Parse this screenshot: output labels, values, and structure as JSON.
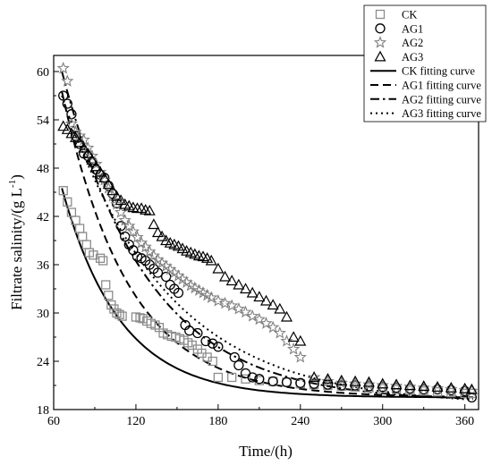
{
  "chart_data": {
    "type": "scatter",
    "xlabel": "Time/(h)",
    "ylabel_main": "Filtrate salinity/(g   L",
    "ylabel_exp": "-1",
    "ylabel_close": ")",
    "xlim": [
      60,
      370
    ],
    "ylim": [
      18,
      62
    ],
    "xticks": [
      60,
      120,
      180,
      240,
      300,
      360
    ],
    "yticks": [
      18,
      24,
      30,
      36,
      42,
      48,
      54,
      60
    ],
    "legend_position": "top-right",
    "colors": {
      "CK": "#8c8c8c",
      "AG1": "#000000",
      "AG2": "#808080",
      "AG3": "#000000",
      "fit": "#000000"
    },
    "legend": [
      {
        "label": "CK",
        "kind": "square"
      },
      {
        "label": "AG1",
        "kind": "circle"
      },
      {
        "label": "AG2",
        "kind": "star"
      },
      {
        "label": "AG3",
        "kind": "triangle"
      },
      {
        "label": "CK fitting curve",
        "kind": "solid"
      },
      {
        "label": "AG1 fitting curve",
        "kind": "dash"
      },
      {
        "label": "AG2 fitting curve",
        "kind": "dashdot"
      },
      {
        "label": "AG3 fitting curve",
        "kind": "dot"
      }
    ],
    "series": [
      {
        "name": "CK",
        "marker": "square",
        "x": [
          67,
          70,
          73,
          76,
          79,
          81,
          84,
          86,
          89,
          94,
          96,
          98,
          100,
          102,
          104,
          106,
          108,
          110,
          120,
          123,
          125,
          128,
          131,
          134,
          137,
          140,
          143,
          146,
          149,
          152,
          155,
          158,
          161,
          165,
          168,
          172,
          176,
          180,
          190,
          200,
          210,
          220,
          230,
          240,
          250,
          260,
          270,
          280,
          290,
          300,
          310,
          320,
          330,
          340,
          350,
          360,
          365
        ],
        "y": [
          45.2,
          43.8,
          42.5,
          41.5,
          40.5,
          39.5,
          38.5,
          37.5,
          37.2,
          36.8,
          36.5,
          33.5,
          32.2,
          31,
          30.5,
          30,
          29.8,
          29.6,
          29.5,
          29.4,
          29.3,
          29,
          28.7,
          28.5,
          28.2,
          27.5,
          27.3,
          27.1,
          27,
          26.8,
          26.6,
          26.3,
          26,
          25.5,
          25,
          24.5,
          24,
          22,
          22,
          21.8,
          21.6,
          21.5,
          21.4,
          21.2,
          21.1,
          21,
          20.9,
          20.8,
          20.7,
          20.6,
          20.5,
          20.4,
          20.3,
          20.2,
          20.1,
          20,
          20
        ]
      },
      {
        "name": "AG1",
        "marker": "circle",
        "x": [
          67,
          70,
          73,
          76,
          79,
          82,
          85,
          88,
          91,
          94,
          97,
          100,
          103,
          106,
          109,
          112,
          115,
          118,
          121,
          124,
          127,
          130,
          133,
          136,
          142,
          145,
          148,
          151,
          156,
          159,
          165,
          171,
          176,
          180,
          192,
          195,
          200,
          205,
          210,
          220,
          230,
          240,
          250,
          260,
          270,
          280,
          290,
          300,
          310,
          320,
          330,
          340,
          350,
          360,
          365
        ],
        "y": [
          57,
          56,
          54.7,
          52,
          51,
          49.8,
          49.5,
          48.8,
          47.8,
          47.2,
          46.8,
          45.8,
          44.8,
          43.6,
          40.8,
          39.5,
          38.5,
          37.8,
          37,
          36.8,
          36.5,
          36,
          35.5,
          35,
          34.5,
          33.5,
          33,
          32.5,
          28.5,
          27.8,
          27.5,
          26.5,
          26.2,
          25.8,
          24.5,
          23.5,
          22.5,
          22,
          21.8,
          21.5,
          21.4,
          21.3,
          21.2,
          21.1,
          21,
          21,
          20.9,
          20.8,
          20.7,
          20.6,
          20.5,
          20.5,
          20.4,
          20.3,
          19.5
        ]
      },
      {
        "name": "AG2",
        "marker": "star",
        "x": [
          67,
          70,
          73,
          76,
          79,
          82,
          85,
          88,
          91,
          94,
          97,
          100,
          103,
          106,
          109,
          112,
          115,
          118,
          121,
          124,
          127,
          130,
          133,
          136,
          139,
          142,
          145,
          148,
          151,
          154,
          157,
          160,
          163,
          166,
          169,
          172,
          175,
          180,
          185,
          190,
          195,
          200,
          205,
          210,
          215,
          220,
          225,
          230,
          235,
          240,
          250,
          260,
          270,
          280,
          290,
          300,
          310,
          320,
          330,
          340,
          350,
          360,
          365
        ],
        "y": [
          60.4,
          58.8,
          53.5,
          52.5,
          52,
          51.5,
          50.5,
          49.5,
          48.5,
          47.5,
          46.5,
          45.5,
          44.5,
          43.5,
          42.5,
          41.5,
          40.8,
          40.1,
          39.4,
          38.7,
          38.2,
          37.6,
          37.1,
          36.6,
          36.2,
          35.8,
          35.4,
          35,
          34.6,
          34.2,
          33.8,
          33.4,
          33.1,
          32.8,
          32.5,
          32.2,
          31.9,
          31.5,
          31.2,
          30.9,
          30.5,
          30.1,
          29.6,
          29.2,
          28.7,
          28.2,
          27.5,
          26.5,
          25.5,
          24.5,
          22,
          21.5,
          21.3,
          21.2,
          21.1,
          21,
          20.9,
          20.8,
          20.7,
          20.6,
          20.5,
          20.4,
          20.3
        ]
      },
      {
        "name": "AG3",
        "marker": "triangle",
        "x": [
          67,
          70,
          73,
          76,
          79,
          82,
          85,
          88,
          91,
          94,
          97,
          100,
          103,
          106,
          109,
          112,
          115,
          118,
          121,
          124,
          127,
          130,
          133,
          136,
          139,
          142,
          145,
          148,
          151,
          154,
          157,
          160,
          163,
          166,
          169,
          172,
          175,
          180,
          185,
          190,
          195,
          200,
          205,
          210,
          215,
          220,
          225,
          230,
          235,
          240,
          250,
          260,
          270,
          280,
          290,
          300,
          310,
          320,
          330,
          340,
          350,
          360,
          365
        ],
        "y": [
          53.2,
          52.8,
          52.3,
          51.8,
          51.2,
          50.5,
          49.8,
          49,
          48.2,
          47.5,
          46.8,
          46,
          45.2,
          44.5,
          44,
          43.5,
          43.3,
          43.1,
          43,
          43,
          42.8,
          42.7,
          41,
          40,
          39.5,
          39,
          38.7,
          38.5,
          38.3,
          38,
          37.7,
          37.5,
          37.3,
          37.1,
          37,
          36.8,
          36.5,
          35.5,
          34.5,
          34,
          33.5,
          33,
          32.5,
          32,
          31.5,
          31,
          30.5,
          29.5,
          27,
          26.5,
          22,
          21.8,
          21.6,
          21.5,
          21.4,
          21.2,
          21.1,
          21,
          20.9,
          20.8,
          20.7,
          20.6,
          20.5
        ]
      }
    ],
    "fits": [
      {
        "name": "CK fitting curve",
        "style": "solid",
        "equilibrium": 19.5,
        "initial": 45.5,
        "rate": 0.0235
      },
      {
        "name": "AG1 fitting curve",
        "style": "dash",
        "equilibrium": 19.5,
        "initial": 57.5,
        "rate": 0.0205
      },
      {
        "name": "AG2 fitting curve",
        "style": "dashdot",
        "equilibrium": 19,
        "initial": 60,
        "rate": 0.0158
      },
      {
        "name": "AG3 fitting curve",
        "style": "dot",
        "equilibrium": 18.5,
        "initial": 57,
        "rate": 0.0132
      }
    ]
  }
}
